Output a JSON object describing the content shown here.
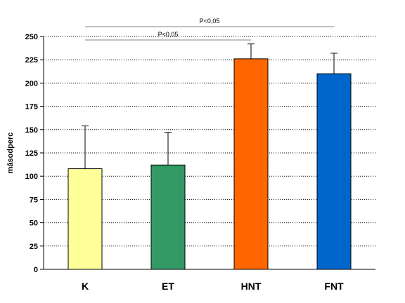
{
  "chart_data": {
    "type": "bar",
    "categories": [
      "K",
      "ET",
      "HNT",
      "FNT"
    ],
    "values": [
      108,
      112,
      226,
      210
    ],
    "error_upper": [
      154,
      147,
      242,
      232
    ],
    "colors": [
      "#FFFF99",
      "#339966",
      "#FF6600",
      "#0066CC"
    ],
    "title": "",
    "xlabel": "",
    "ylabel": "másodperc",
    "ylim": [
      0,
      250
    ],
    "yticks": [
      0,
      25,
      50,
      75,
      100,
      125,
      150,
      175,
      200,
      225,
      250
    ],
    "grid": true,
    "grid_style": "dotted",
    "legend": "none",
    "annotations": [
      {
        "text": "P<0,05",
        "from": "K",
        "to": "FNT"
      },
      {
        "text": "P<0,05",
        "from": "K",
        "to": "HNT"
      }
    ]
  }
}
